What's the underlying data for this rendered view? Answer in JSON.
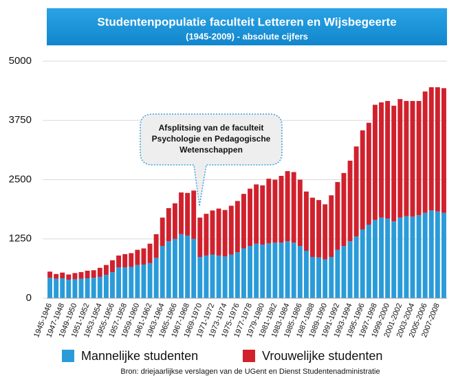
{
  "chart_data": {
    "type": "stacked_bar",
    "title": "Studentenpopulatie faculteit Letteren en Wijsbegeerte",
    "subtitle": "(1945-2009) - absolute cijfers",
    "annotation": [
      "Afsplitsing van de faculteit",
      "Psychologie en Pedagogische",
      "Wetenschappen"
    ],
    "source": "Bron: driejaarlijkse verslagen van de UGent en Dienst Studentenadministratie",
    "categories": [
      "1945-1946",
      null,
      "1947-1948",
      null,
      "1949-1950",
      null,
      "1951-1952",
      null,
      "1953-1954",
      null,
      "1955-1956",
      null,
      "1957-1958",
      null,
      "1959-1960",
      null,
      "1961-1962",
      null,
      "1963-1964",
      null,
      "1965-1966",
      null,
      "1967-1968",
      null,
      "1969-1970",
      null,
      "1971-1972",
      null,
      "1973-1974",
      null,
      "1975-1976",
      null,
      "1977-1978",
      null,
      "1979-1980",
      null,
      "1981-1982",
      null,
      "1983-1984",
      null,
      "1985-1986",
      null,
      "1987-1988",
      null,
      "1989-1990",
      null,
      "1991-1992",
      null,
      "1993-1994",
      null,
      "1995-1996",
      null,
      "1997-1998",
      null,
      "1999-2000",
      null,
      "2001-2002",
      null,
      "2003-2004",
      null,
      "2005-2006",
      null,
      "2007-2008",
      null
    ],
    "series": [
      {
        "name": "Mannelijke studenten",
        "color": "#2a9bd9",
        "values": [
          430,
          410,
          420,
          390,
          400,
          410,
          420,
          430,
          450,
          490,
          550,
          650,
          650,
          660,
          700,
          710,
          740,
          850,
          1100,
          1200,
          1250,
          1350,
          1320,
          1250,
          870,
          900,
          920,
          900,
          880,
          920,
          970,
          1050,
          1100,
          1150,
          1130,
          1160,
          1170,
          1170,
          1200,
          1170,
          1100,
          1000,
          870,
          860,
          820,
          870,
          1020,
          1100,
          1200,
          1300,
          1450,
          1550,
          1650,
          1700,
          1680,
          1620,
          1700,
          1730,
          1720,
          1750,
          1800,
          1850,
          1830,
          1800
        ]
      },
      {
        "name": "Vrouwelijke studenten",
        "color": "#d0212d",
        "values": [
          130,
          100,
          120,
          110,
          130,
          140,
          160,
          160,
          190,
          210,
          250,
          250,
          280,
          290,
          320,
          340,
          410,
          500,
          600,
          700,
          750,
          880,
          900,
          1020,
          830,
          880,
          930,
          990,
          980,
          1030,
          1080,
          1150,
          1210,
          1250,
          1250,
          1360,
          1330,
          1410,
          1480,
          1490,
          1400,
          1250,
          1250,
          1210,
          1160,
          1300,
          1430,
          1540,
          1700,
          1900,
          2090,
          2150,
          2430,
          2430,
          2480,
          2440,
          2500,
          2430,
          2440,
          2410,
          2560,
          2600,
          2620,
          2630
        ]
      }
    ],
    "ylim": [
      0,
      5000
    ],
    "yticks": [
      0,
      1250,
      2500,
      3750,
      5000
    ],
    "grid": true,
    "legend": "bottom"
  }
}
